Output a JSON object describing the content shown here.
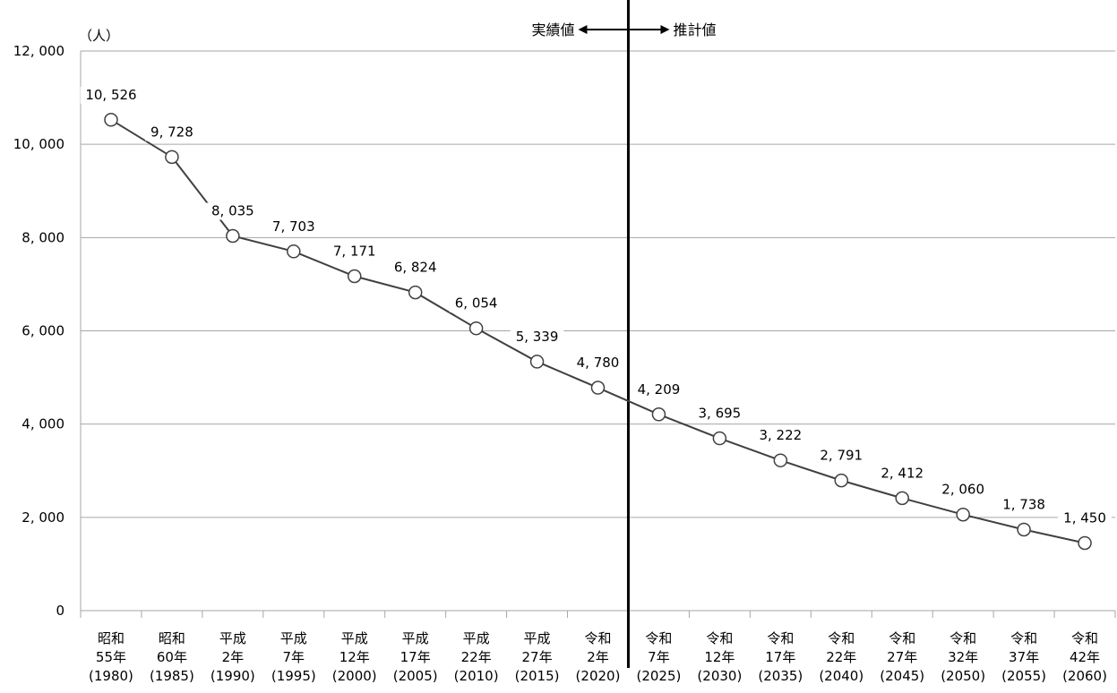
{
  "chart_data": {
    "type": "line",
    "unit_label": "（人）",
    "categories": [
      [
        "昭和",
        "55年",
        "(1980)"
      ],
      [
        "昭和",
        "60年",
        "(1985)"
      ],
      [
        "平成",
        "2年",
        "(1990)"
      ],
      [
        "平成",
        "7年",
        "(1995)"
      ],
      [
        "平成",
        "12年",
        "(2000)"
      ],
      [
        "平成",
        "17年",
        "(2005)"
      ],
      [
        "平成",
        "22年",
        "(2010)"
      ],
      [
        "平成",
        "27年",
        "(2015)"
      ],
      [
        "令和",
        "2年",
        "(2020)"
      ],
      [
        "令和",
        "7年",
        "(2025)"
      ],
      [
        "令和",
        "12年",
        "(2030)"
      ],
      [
        "令和",
        "17年",
        "(2035)"
      ],
      [
        "令和",
        "22年",
        "(2040)"
      ],
      [
        "令和",
        "27年",
        "(2045)"
      ],
      [
        "令和",
        "32年",
        "(2050)"
      ],
      [
        "令和",
        "37年",
        "(2055)"
      ],
      [
        "令和",
        "42年",
        "(2060)"
      ]
    ],
    "values": [
      10526,
      9728,
      8035,
      7703,
      7171,
      6824,
      6054,
      5339,
      4780,
      4209,
      3695,
      3222,
      2791,
      2412,
      2060,
      1738,
      1450
    ],
    "value_labels": [
      "10, 526",
      "9, 728",
      "8, 035",
      "7, 703",
      "7, 171",
      "6, 824",
      "6, 054",
      "5, 339",
      "4, 780",
      "4, 209",
      "3, 695",
      "3, 222",
      "2, 791",
      "2, 412",
      "2, 060",
      "1, 738",
      "1, 450"
    ],
    "ylim": [
      0,
      12000
    ],
    "yticks": [
      0,
      2000,
      4000,
      6000,
      8000,
      10000,
      12000
    ],
    "ytick_labels": [
      "0",
      "2, 000",
      "4, 000",
      "6, 000",
      "8, 000",
      "10, 000",
      "12, 000"
    ],
    "grid": true,
    "divider": {
      "between_index": [
        8,
        9
      ],
      "left_label": "実績値",
      "right_label": "推計値"
    },
    "colors": {
      "line": "#404040",
      "grid": "#a6a6a6",
      "marker_fill": "#ffffff",
      "divider": "#000000"
    }
  }
}
